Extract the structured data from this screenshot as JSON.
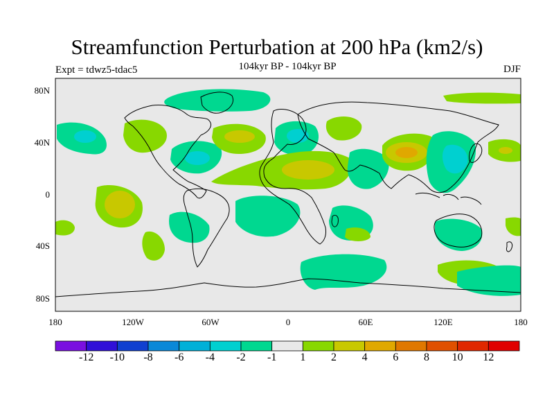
{
  "title": "Streamfunction Perturbation at 200 hPa (km2/s)",
  "subtitle": "104kyr BP - 104kyr BP",
  "experiment": "Expt = tdwz5-tdac5",
  "season": "DJF",
  "axes": {
    "y_ticks": [
      "80N",
      "40N",
      "0",
      "40S",
      "80S"
    ],
    "x_ticks": [
      "180",
      "120W",
      "60W",
      "0",
      "60E",
      "120E",
      "180"
    ]
  },
  "colorbar": {
    "labels": [
      "-12",
      "-10",
      "-8",
      "-6",
      "-4",
      "-2",
      "-1",
      "1",
      "2",
      "4",
      "6",
      "8",
      "10",
      "12"
    ],
    "colors": [
      "#7a10e0",
      "#3010d8",
      "#1040d0",
      "#0a88d8",
      "#00b0d8",
      "#00d0d0",
      "#00d890",
      "#e8e8e8",
      "#88d800",
      "#c8c800",
      "#e0a800",
      "#e07800",
      "#e05000",
      "#e02800",
      "#e00000"
    ]
  },
  "colors": {
    "land_background": "#e8e8e8",
    "neg_1_2": "#00d890",
    "neg_2_4": "#00d0d0",
    "neg_4_6": "#00b0d8",
    "pos_1_2": "#88d800",
    "pos_2_4": "#c8c800",
    "pos_4_6": "#e0a800"
  }
}
